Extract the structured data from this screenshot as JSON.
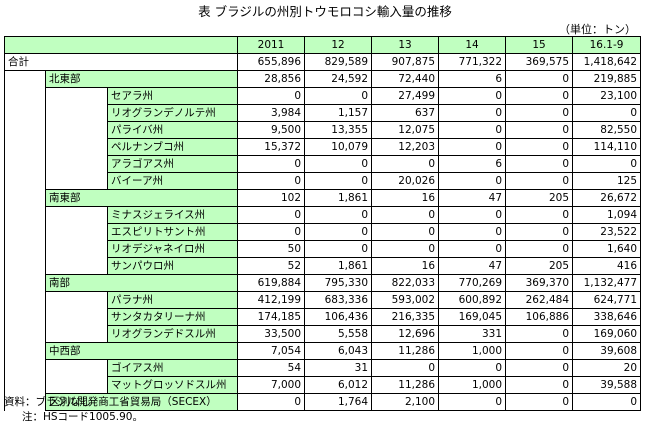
{
  "title": "表 ブラジルの州別トウモロコシ輸入量の推移",
  "unit": "（単位：トン）",
  "columns": [
    "2011",
    "12",
    "13",
    "14",
    "15",
    "16.1-9"
  ],
  "rows": [
    {
      "level": 0,
      "label": "合計",
      "values": [
        "655,896",
        "829,589",
        "907,875",
        "771,322",
        "369,575",
        "1,418,642"
      ]
    },
    {
      "level": 1,
      "label": "北東部",
      "values": [
        "28,856",
        "24,592",
        "72,440",
        "6",
        "0",
        "219,885"
      ]
    },
    {
      "level": 2,
      "label": "セアラ州",
      "values": [
        "0",
        "0",
        "27,499",
        "0",
        "0",
        "23,100"
      ]
    },
    {
      "level": 2,
      "label": "リオグランデノルテ州",
      "values": [
        "3,984",
        "1,157",
        "637",
        "0",
        "0",
        "0"
      ]
    },
    {
      "level": 2,
      "label": "パライバ州",
      "values": [
        "9,500",
        "13,355",
        "12,075",
        "0",
        "0",
        "82,550"
      ]
    },
    {
      "level": 2,
      "label": "ペルナンブコ州",
      "values": [
        "15,372",
        "10,079",
        "12,203",
        "0",
        "0",
        "114,110"
      ]
    },
    {
      "level": 2,
      "label": "アラゴアス州",
      "values": [
        "0",
        "0",
        "0",
        "6",
        "0",
        "0"
      ]
    },
    {
      "level": 2,
      "label": "バイーア州",
      "values": [
        "0",
        "0",
        "20,026",
        "0",
        "0",
        "125"
      ]
    },
    {
      "level": 1,
      "label": "南東部",
      "values": [
        "102",
        "1,861",
        "16",
        "47",
        "205",
        "26,672"
      ]
    },
    {
      "level": 2,
      "label": "ミナスジェライス州",
      "values": [
        "0",
        "0",
        "0",
        "0",
        "0",
        "1,094"
      ]
    },
    {
      "level": 2,
      "label": "エスピリトサント州",
      "values": [
        "0",
        "0",
        "0",
        "0",
        "0",
        "23,522"
      ]
    },
    {
      "level": 2,
      "label": "リオデジャネイロ州",
      "values": [
        "50",
        "0",
        "0",
        "0",
        "0",
        "1,640"
      ]
    },
    {
      "level": 2,
      "label": "サンパウロ州",
      "values": [
        "52",
        "1,861",
        "16",
        "47",
        "205",
        "416"
      ]
    },
    {
      "level": 1,
      "label": "南部",
      "values": [
        "619,884",
        "795,330",
        "822,033",
        "770,269",
        "369,370",
        "1,132,477"
      ]
    },
    {
      "level": 2,
      "label": "パラナ州",
      "values": [
        "412,199",
        "683,336",
        "593,002",
        "600,892",
        "262,484",
        "624,771"
      ]
    },
    {
      "level": 2,
      "label": "サンタカタリーナ州",
      "values": [
        "174,185",
        "106,436",
        "216,335",
        "169,045",
        "106,886",
        "338,646"
      ]
    },
    {
      "level": 2,
      "label": "リオグランデドスル州",
      "values": [
        "33,500",
        "5,558",
        "12,696",
        "331",
        "0",
        "169,060"
      ]
    },
    {
      "level": 1,
      "label": "中西部",
      "values": [
        "7,054",
        "6,043",
        "11,286",
        "1,000",
        "0",
        "39,608"
      ]
    },
    {
      "level": 2,
      "label": "ゴイアス州",
      "values": [
        "54",
        "31",
        "0",
        "0",
        "0",
        "20"
      ]
    },
    {
      "level": 2,
      "label": "マットグロッソドスル州",
      "values": [
        "7,000",
        "6,012",
        "11,286",
        "1,000",
        "0",
        "39,588"
      ]
    },
    {
      "level": 1,
      "label": "区別なし",
      "values": [
        "0",
        "1,764",
        "2,100",
        "0",
        "0",
        "0"
      ]
    }
  ],
  "source": "資料：ブラジル開発商工省貿易局（SECEX）",
  "note": "注：HSコード1005.90。",
  "colors": {
    "label_bg": "#c0ffc0",
    "border": "#000000"
  }
}
